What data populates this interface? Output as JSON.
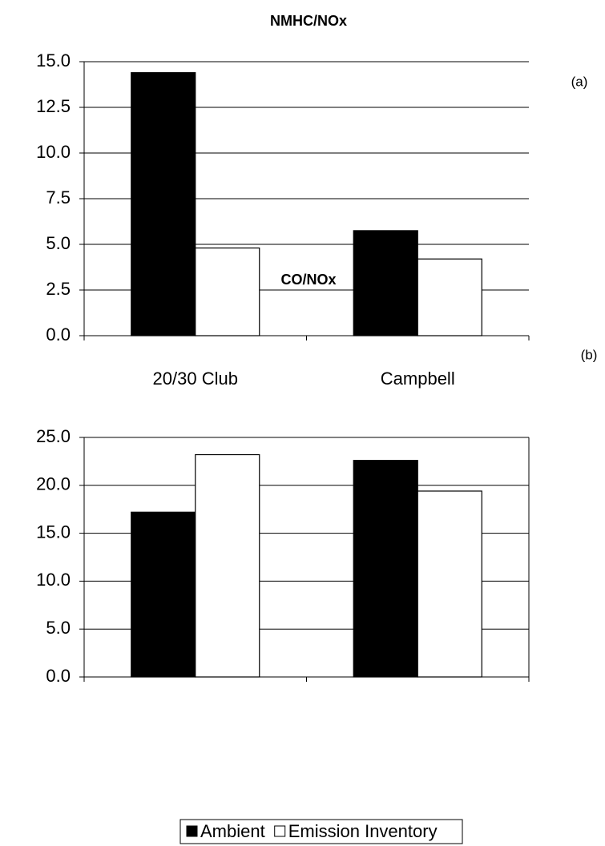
{
  "chart_data": [
    {
      "type": "bar",
      "title": "NMHC/NOx",
      "annotation": "(a)",
      "categories": [
        "20/30 Club",
        "Campbell"
      ],
      "series": [
        {
          "name": "Ambient",
          "color": "#000000",
          "values": [
            14.4,
            5.75
          ]
        },
        {
          "name": "Emission Inventory",
          "color": "#ffffff",
          "values": [
            4.8,
            4.2
          ]
        }
      ],
      "ylim": [
        0,
        15
      ],
      "yticks": [
        {
          "value": 0,
          "label": "0.0"
        },
        {
          "value": 2.5,
          "label": "2.5"
        },
        {
          "value": 5,
          "label": "5.0"
        },
        {
          "value": 7.5,
          "label": "7.5"
        },
        {
          "value": 10,
          "label": "10.0"
        },
        {
          "value": 12.5,
          "label": "12.5"
        },
        {
          "value": 15,
          "label": "15.0"
        }
      ],
      "grid": true
    },
    {
      "type": "bar",
      "title": "CO/NOx",
      "annotation": "(b)",
      "categories": [
        "20/30 Club",
        "Campbell"
      ],
      "series": [
        {
          "name": "Ambient",
          "color": "#000000",
          "values": [
            17.2,
            22.6
          ]
        },
        {
          "name": "Emission Inventory",
          "color": "#ffffff",
          "values": [
            23.2,
            19.4
          ]
        }
      ],
      "ylim": [
        0,
        25
      ],
      "yticks": [
        {
          "value": 0,
          "label": "0.0"
        },
        {
          "value": 5,
          "label": "5.0"
        },
        {
          "value": 10,
          "label": "10.0"
        },
        {
          "value": 15,
          "label": "15.0"
        },
        {
          "value": 20,
          "label": "20.0"
        },
        {
          "value": 25,
          "label": "25.0"
        }
      ],
      "grid": true,
      "legend": "bottom"
    }
  ]
}
